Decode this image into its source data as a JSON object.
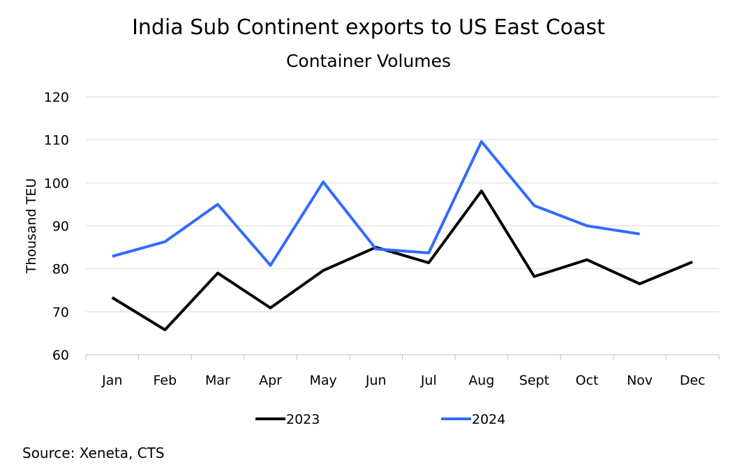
{
  "chart_data": {
    "type": "line",
    "title": "India Sub Continent exports to US East Coast",
    "subtitle": "Container Volumes",
    "xlabel": "",
    "ylabel": "Thousand TEU",
    "ylim": [
      60,
      120
    ],
    "yticks": [
      60,
      70,
      80,
      90,
      100,
      110,
      120
    ],
    "grid": true,
    "legend": "bottom",
    "categories": [
      "Jan",
      "Feb",
      "Mar",
      "Apr",
      "May",
      "Jun",
      "Jul",
      "Aug",
      "Sept",
      "Oct",
      "Nov",
      "Dec"
    ],
    "series": [
      {
        "name": "2023",
        "color": "#000000",
        "values": [
          73.3,
          65.8,
          79.0,
          70.9,
          79.6,
          85.0,
          81.4,
          98.1,
          78.2,
          82.1,
          76.5,
          81.6
        ]
      },
      {
        "name": "2024",
        "color": "#2f6bff",
        "values": [
          82.9,
          86.3,
          95.0,
          80.8,
          100.2,
          84.6,
          83.7,
          109.6,
          94.7,
          90.0,
          88.1,
          null
        ]
      }
    ],
    "source": "Source: Xeneta, CTS"
  }
}
